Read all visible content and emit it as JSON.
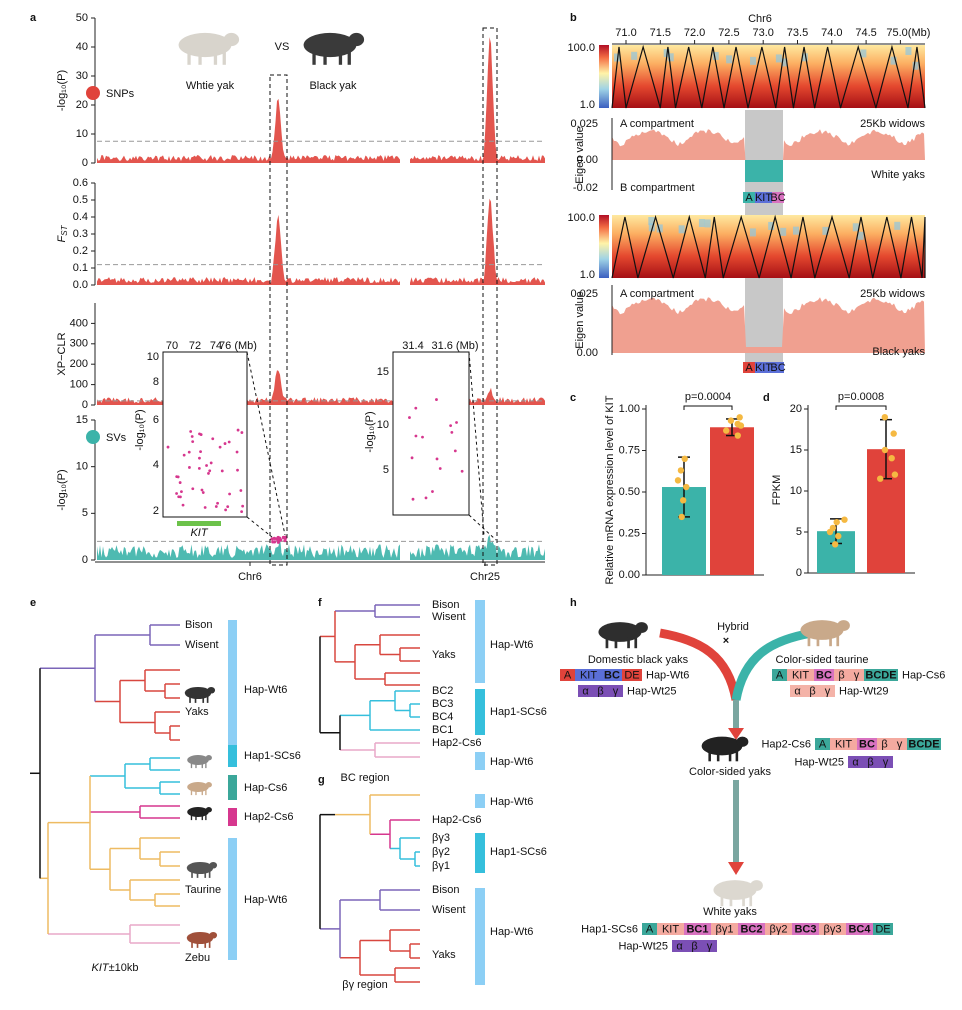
{
  "panel_labels": [
    "a",
    "b",
    "c",
    "d",
    "e",
    "f",
    "g",
    "h"
  ],
  "chart_data": [
    {
      "type": "manhattan",
      "y_label": "-log₁₀(P)",
      "ylim": [
        0,
        50
      ],
      "yticks": [
        0,
        10,
        20,
        30,
        40,
        50
      ],
      "threshold": 7.5,
      "color": "#e0433b",
      "legend": "SNPs"
    },
    {
      "type": "manhattan",
      "y_label": {
        "main": "F",
        "sub": "ST"
      },
      "ylim": [
        0,
        0.6
      ],
      "yticks": [
        {
          "value": 0,
          "label": "0.0"
        },
        0.1,
        0.2,
        0.3,
        0.4,
        0.5,
        0.6
      ],
      "threshold": 0.12,
      "color": "#e0433b"
    },
    {
      "type": "manhattan",
      "y_label": "XP−CLR",
      "ylim": [
        0,
        500
      ],
      "yticks": [
        0,
        100,
        200,
        300,
        400
      ],
      "threshold": 20,
      "color": "#e0433b"
    },
    {
      "type": "manhattan",
      "y_label": "-log₁₀(P)",
      "ylim": [
        0,
        15
      ],
      "yticks": [
        0,
        5,
        10,
        15
      ],
      "threshold": 2,
      "color": "#3bb3a9",
      "legend": "SVs",
      "categories": [
        "Chr6",
        "Chr25"
      ]
    },
    {
      "type": "bar",
      "y_label": "Relative mRNA expression level of KIT",
      "categories": [
        null,
        null
      ],
      "colors": [
        "#3bb3a9",
        "#e0433b"
      ],
      "values": [
        0.53,
        0.89
      ],
      "errors": [
        0.18,
        0.05
      ],
      "points": [
        [
          0.35,
          0.45,
          0.53,
          0.57,
          0.63,
          0.7
        ],
        [
          0.84,
          0.87,
          0.9,
          0.91,
          0.93,
          0.95
        ]
      ],
      "point_color": "#f5b942",
      "ylim": [
        0,
        1
      ],
      "yticks": [
        {
          "value": 0,
          "label": "0.00"
        },
        0.25,
        {
          "value": 0.5,
          "label": "0.50"
        },
        0.75,
        {
          "value": 1,
          "label": "1.00"
        }
      ],
      "annotation": "p=0.0004"
    },
    {
      "type": "bar",
      "y_label": "FPKM",
      "categories": [
        null,
        null
      ],
      "colors": [
        "#3bb3a9",
        "#e0433b"
      ],
      "values": [
        5.1,
        15.1
      ],
      "errors": [
        1.5,
        3.6
      ],
      "points": [
        [
          3.5,
          4.5,
          5,
          5.5,
          6.2,
          6.5
        ],
        [
          11.5,
          12,
          14,
          15,
          17,
          19
        ]
      ],
      "point_color": "#f5b942",
      "ylim": [
        0,
        20
      ],
      "yticks": [
        0,
        5,
        10,
        15,
        20
      ],
      "annotation": "p=0.0008"
    }
  ],
  "panel_a": {
    "white_yak": "Whtie yak",
    "black_yak": "Black yak",
    "vs": "VS",
    "inset_chr6": {
      "xticks": [
        "70",
        "72",
        "74",
        "76 (Mb)"
      ],
      "yticks": [
        "10",
        "8",
        "6",
        "4",
        "2"
      ],
      "y_label": "-log₁₀(P)",
      "gene": "KIT"
    },
    "inset_chr25": {
      "xticks": [
        "31.4",
        "31.6 (Mb)"
      ],
      "yticks": [
        "15",
        "10",
        "5"
      ],
      "y_label": "-log₁₀(P)"
    }
  },
  "panel_b": {
    "chromosome": "Chr6",
    "xticks": [
      "71.0",
      "71.5",
      "72.0",
      "72.5",
      "73.0",
      "73.5",
      "74.0",
      "74.5",
      "75.0(Mb)"
    ],
    "tracks": [
      {
        "colorbar": [
          "100.0",
          "1.0"
        ],
        "y_label": "Eigen value",
        "yticks": [
          "0.025",
          "0.00",
          "-0.02"
        ],
        "top_text": "A compartment",
        "bottom_text": "B compartment",
        "window": "25Kb widows",
        "sample": "White yaks",
        "genes": [
          "A",
          "KIT",
          "BC"
        ]
      },
      {
        "colorbar": [
          "100.0",
          "1.0"
        ],
        "y_label": "Eigen value",
        "yticks": [
          "0.025",
          "0.00"
        ],
        "top_text": "A compartment",
        "window": "25Kb widows",
        "sample": "Black yaks",
        "genes": [
          "A",
          "KIT",
          "BC"
        ]
      }
    ]
  },
  "panel_e": {
    "leaves": [
      "Bison",
      "Wisent",
      "Yaks",
      "Taurine",
      "Zebu"
    ],
    "haplotypes": [
      "Hap-Wt6",
      "Hap1-SCs6",
      "Hap-Cs6",
      "Hap2-Cs6",
      "Hap-Wt6"
    ],
    "region": {
      "gene": "KIT",
      "rest": "±10kb"
    }
  },
  "panel_f": {
    "leaves": [
      "Bison",
      "Wisent",
      "Yaks",
      "BC2",
      "BC3",
      "BC4",
      "BC1",
      "Hap2-Cs6"
    ],
    "haplotypes": [
      "Hap-Wt6",
      "Hap1-SCs6",
      "Hap-Wt6"
    ],
    "region": "BC region"
  },
  "panel_g": {
    "leaves": [
      "Hap2-Cs6",
      "βγ3",
      "βγ2",
      "βγ1",
      "Bison",
      "Wisent",
      "Yaks"
    ],
    "haplotypes": [
      "Hap-Wt6",
      "Hap1-SCs6",
      "Hap-Wt6"
    ],
    "region": "βγ region"
  },
  "panel_h": {
    "hybrid": "Hybrid",
    "cross": "×",
    "groups": [
      {
        "name": "Domestic black yaks",
        "haplotypes": [
          {
            "name": "Hap-Wt6",
            "segments": [
              {
                "text": "A",
                "color": "#e0433b"
              },
              {
                "text": "KIT",
                "color": "#5b6fd8"
              },
              {
                "text": "BC",
                "color": "#5b6fd8"
              },
              {
                "text": "DE",
                "color": "#e0433b"
              }
            ]
          },
          {
            "name": "Hap-Wt25",
            "segments": [
              {
                "text": "α",
                "color": "#7b4fb5"
              },
              {
                "text": "β",
                "color": "#7b4fb5"
              },
              {
                "text": "γ",
                "color": "#7b4fb5"
              }
            ]
          }
        ]
      },
      {
        "name": "Color-sided taurine",
        "haplotypes": [
          {
            "name": "Hap-Cs6",
            "segments": [
              {
                "text": "A",
                "color": "#3ba79a"
              },
              {
                "text": "KIT",
                "color": "#f4aaa0"
              },
              {
                "text": "BC",
                "color": "#d872c0"
              },
              {
                "text": "β",
                "color": "#f4aaa0"
              },
              {
                "text": "γ",
                "color": "#f4aaa0"
              },
              {
                "text": "BCDE",
                "color": "#3ba79a"
              }
            ]
          },
          {
            "name": "Hap-Wt29",
            "segments": [
              {
                "text": "α",
                "color": "#f4b3a8"
              },
              {
                "text": "β",
                "color": "#f4b3a8"
              },
              {
                "text": "γ",
                "color": "#f4b3a8"
              }
            ]
          }
        ]
      },
      {
        "name": "Color-sided yaks",
        "haplotypes": [
          {
            "name": "Hap2-Cs6",
            "segments": [
              {
                "text": "A",
                "color": "#3ba79a"
              },
              {
                "text": "KIT",
                "color": "#f4aaa0"
              },
              {
                "text": "BC",
                "color": "#d872c0"
              },
              {
                "text": "β",
                "color": "#f4aaa0"
              },
              {
                "text": "γ",
                "color": "#f4aaa0"
              },
              {
                "text": "BCDE",
                "color": "#3ba79a"
              }
            ]
          },
          {
            "name": "Hap-Wt25",
            "segments": [
              {
                "text": "α",
                "color": "#7b4fb5"
              },
              {
                "text": "β",
                "color": "#7b4fb5"
              },
              {
                "text": "γ",
                "color": "#7b4fb5"
              }
            ]
          }
        ]
      },
      {
        "name": "White yaks",
        "haplotypes": [
          {
            "name": "Hap1-SCs6",
            "segments": [
              {
                "text": "A",
                "color": "#3ba79a"
              },
              {
                "text": "KIT",
                "color": "#f4aaa0"
              },
              {
                "text": "BC1",
                "color": "#d872c0"
              },
              {
                "text": "βγ1",
                "color": "#f4aaa0"
              },
              {
                "text": "BC2",
                "color": "#d872c0"
              },
              {
                "text": "βγ2",
                "color": "#f4aaa0"
              },
              {
                "text": "BC3",
                "color": "#d872c0"
              },
              {
                "text": "βγ3",
                "color": "#f4aaa0"
              },
              {
                "text": "BC4",
                "color": "#d872c0"
              },
              {
                "text": "DE",
                "color": "#3ba79a"
              }
            ]
          },
          {
            "name": "Hap-Wt25",
            "segments": [
              {
                "text": "α",
                "color": "#7b4fb5"
              },
              {
                "text": "β",
                "color": "#7b4fb5"
              },
              {
                "text": "γ",
                "color": "#7b4fb5"
              }
            ]
          }
        ]
      }
    ]
  }
}
